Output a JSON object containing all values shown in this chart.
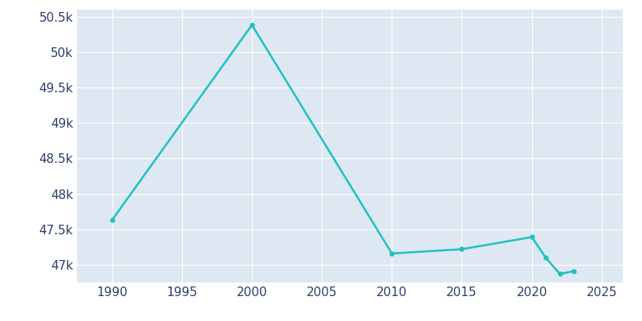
{
  "years": [
    1990,
    2000,
    2010,
    2015,
    2020,
    2021,
    2022,
    2023
  ],
  "population": [
    47630,
    50384,
    47159,
    47220,
    47390,
    47100,
    46870,
    46910
  ],
  "line_color": "#20c0c0",
  "plot_bg_color": "#dde8f2",
  "figure_bg_color": "#ffffff",
  "ylim_min": 46750,
  "ylim_max": 50600,
  "yticks": [
    47000,
    47500,
    48000,
    48500,
    49000,
    49500,
    50000,
    50500
  ],
  "xticks": [
    1990,
    1995,
    2000,
    2005,
    2010,
    2015,
    2020,
    2025
  ],
  "xlim_min": 1987.5,
  "xlim_max": 2026.5,
  "text_color": "#2c3e6b",
  "grid_color": "#ffffff",
  "linewidth": 1.8,
  "marker_size": 3.5
}
